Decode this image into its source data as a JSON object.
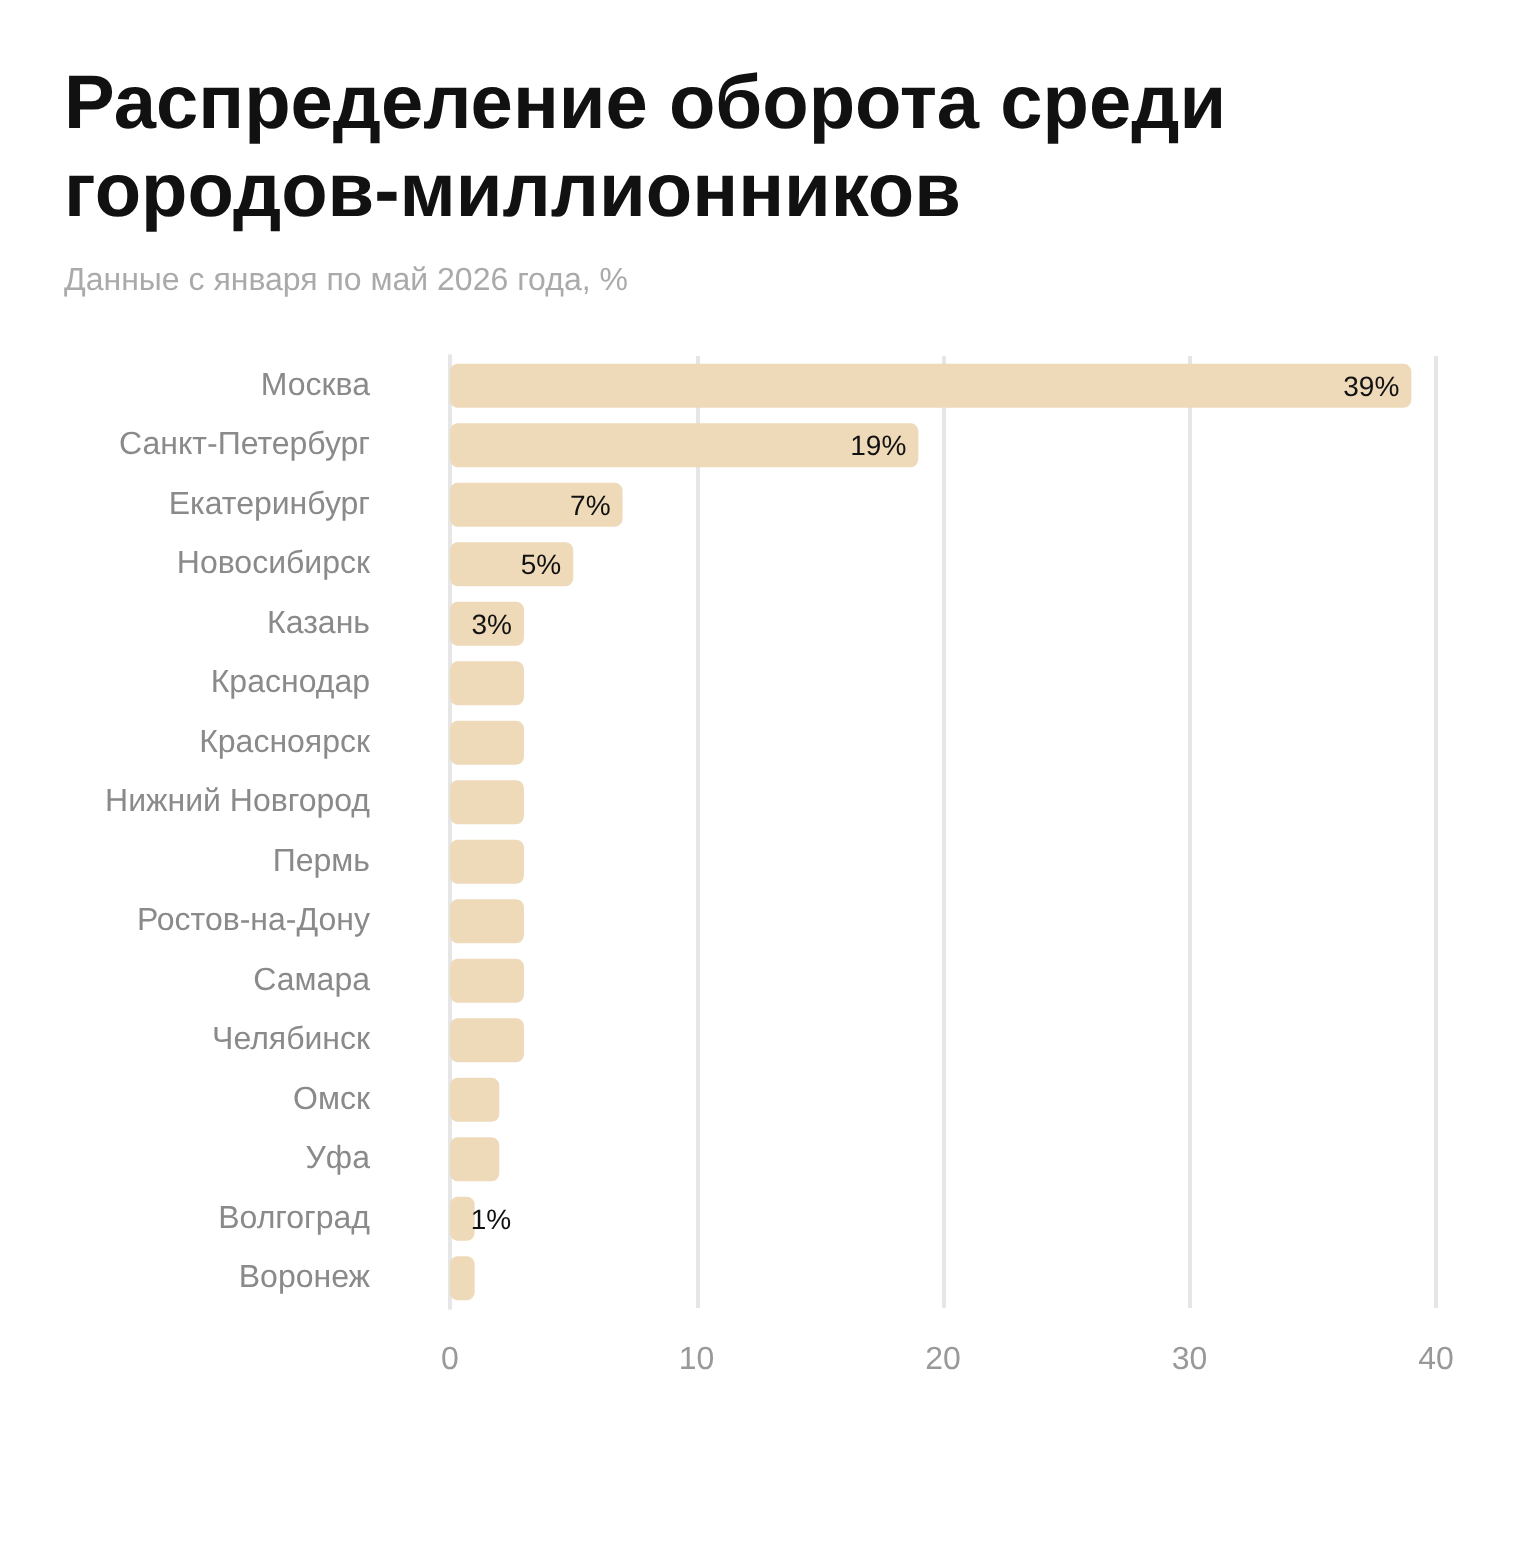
{
  "chart_data": {
    "type": "bar",
    "orientation": "horizontal",
    "title": "Распределение оборота среди городов-миллионников",
    "subtitle": "Данные с января по май 2026 года, %",
    "categories": [
      "Москва",
      "Санкт-Петербург",
      "Екатеринбург",
      "Новосибирск",
      "Казань",
      "Краснодар",
      "Красноярск",
      "Нижний Новгород",
      "Пермь",
      "Ростов-на-Дону",
      "Самара",
      "Челябинск",
      "Омск",
      "Уфа",
      "Волгоград",
      "Воронеж"
    ],
    "values": [
      39,
      19,
      7,
      5,
      3,
      3,
      3,
      3,
      3,
      3,
      3,
      3,
      2,
      2,
      1,
      1
    ],
    "value_labels": [
      "39%",
      "19%",
      "7%",
      "5%",
      "3%",
      null,
      null,
      null,
      null,
      null,
      null,
      null,
      null,
      null,
      "1%",
      null
    ],
    "color": "#eed9b9",
    "xlim": [
      0,
      40
    ],
    "xticks": [
      0,
      10,
      20,
      30,
      40
    ],
    "grid": "x"
  }
}
